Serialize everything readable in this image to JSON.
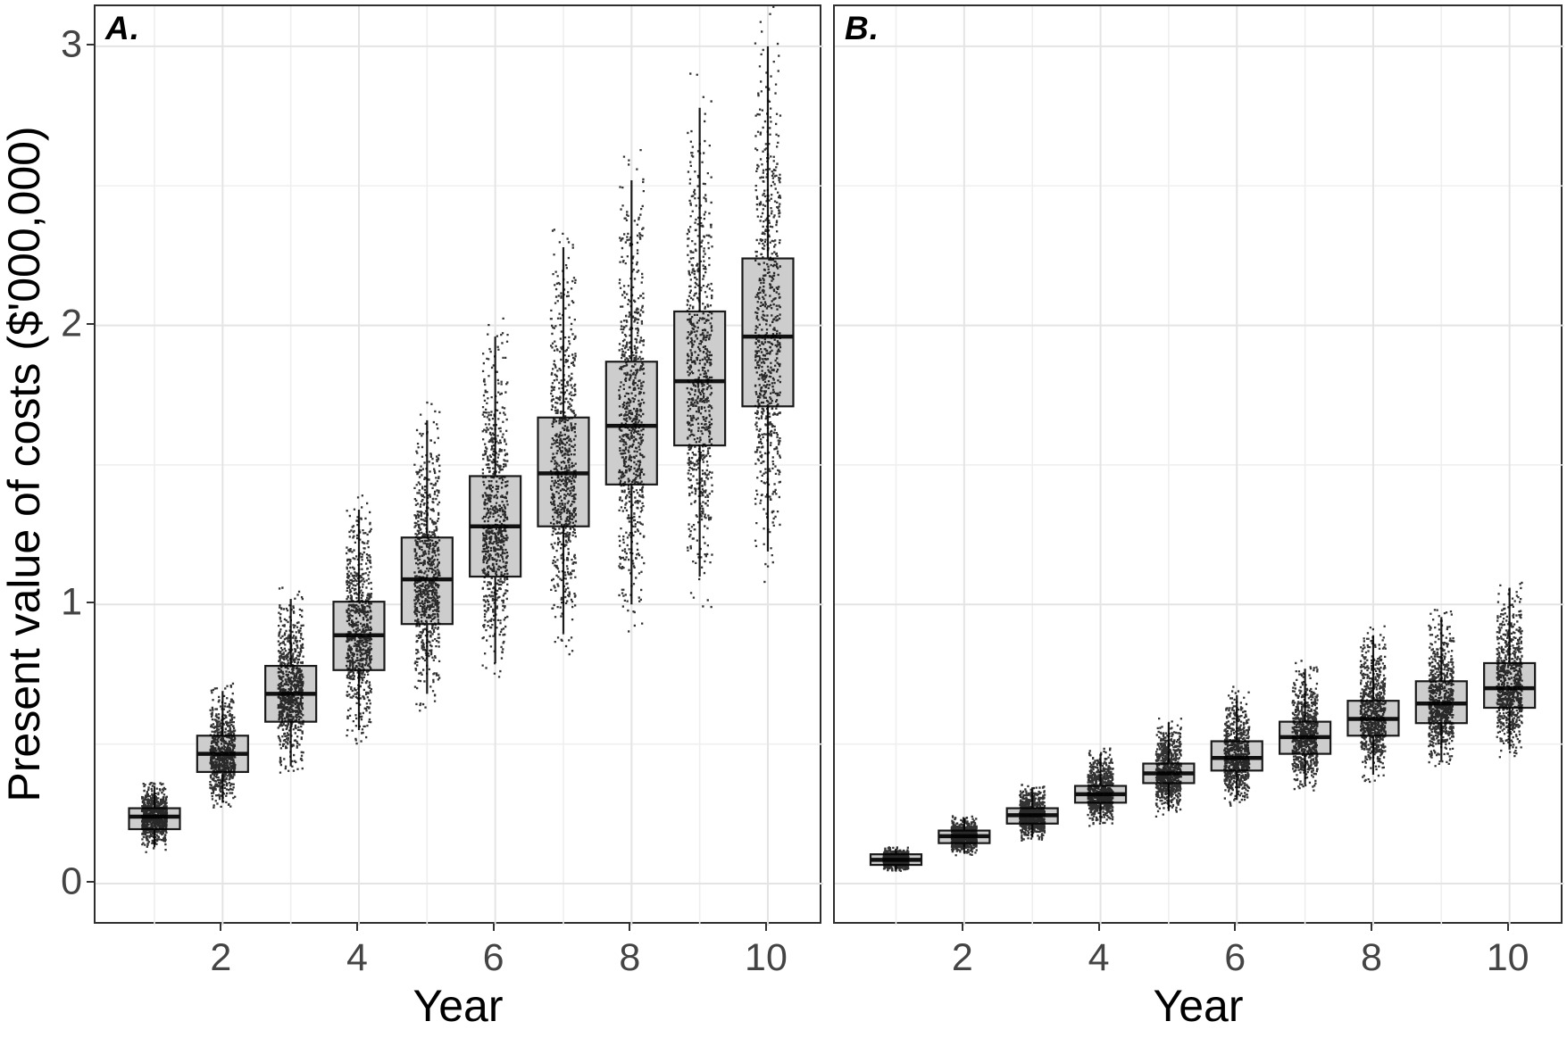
{
  "chart_data": {
    "type": "boxplot",
    "variant": "faceted boxplots with jittered simulation points",
    "title": "",
    "xlabel": "Year",
    "ylabel": "Present value of costs ($'000,000)",
    "x_ticks": [
      2,
      4,
      6,
      8,
      10
    ],
    "x_minor": [
      1,
      3,
      5,
      7,
      9
    ],
    "y_ticks": [
      0,
      1,
      2,
      3
    ],
    "y_minor": [
      0.5,
      1.5,
      2.5
    ],
    "xlim": [
      0.15,
      10.8
    ],
    "ylim": [
      -0.15,
      3.14
    ],
    "grid": "major+minor, light grey on white, full panel border (theme_bw)",
    "legend": "none",
    "facets": [
      {
        "label": "A.",
        "categories": [
          1,
          2,
          3,
          4,
          5,
          6,
          7,
          8,
          9,
          10
        ],
        "stats": [
          {
            "year": 1,
            "whisker_low": 0.13,
            "q1": 0.195,
            "median": 0.24,
            "q3": 0.27,
            "whisker_high": 0.35
          },
          {
            "year": 2,
            "whisker_low": 0.29,
            "q1": 0.4,
            "median": 0.465,
            "q3": 0.53,
            "whisker_high": 0.69
          },
          {
            "year": 3,
            "whisker_low": 0.42,
            "q1": 0.58,
            "median": 0.68,
            "q3": 0.78,
            "whisker_high": 1.02
          },
          {
            "year": 4,
            "whisker_low": 0.55,
            "q1": 0.765,
            "median": 0.89,
            "q3": 1.01,
            "whisker_high": 1.34
          },
          {
            "year": 5,
            "whisker_low": 0.68,
            "q1": 0.93,
            "median": 1.09,
            "q3": 1.24,
            "whisker_high": 1.66
          },
          {
            "year": 6,
            "whisker_low": 0.79,
            "q1": 1.1,
            "median": 1.28,
            "q3": 1.46,
            "whisker_high": 1.96
          },
          {
            "year": 7,
            "whisker_low": 0.9,
            "q1": 1.28,
            "median": 1.47,
            "q3": 1.67,
            "whisker_high": 2.28
          },
          {
            "year": 8,
            "whisker_low": 1.0,
            "q1": 1.43,
            "median": 1.64,
            "q3": 1.87,
            "whisker_high": 2.52
          },
          {
            "year": 9,
            "whisker_low": 1.1,
            "q1": 1.57,
            "median": 1.8,
            "q3": 2.05,
            "whisker_high": 2.78
          },
          {
            "year": 10,
            "whisker_low": 1.19,
            "q1": 1.71,
            "median": 1.96,
            "q3": 2.24,
            "whisker_high": 3.0
          }
        ]
      },
      {
        "label": "B.",
        "categories": [
          1,
          2,
          3,
          4,
          5,
          6,
          7,
          8,
          9,
          10
        ],
        "stats": [
          {
            "year": 1,
            "whisker_low": 0.05,
            "q1": 0.067,
            "median": 0.085,
            "q3": 0.105,
            "whisker_high": 0.125
          },
          {
            "year": 2,
            "whisker_low": 0.11,
            "q1": 0.145,
            "median": 0.17,
            "q3": 0.19,
            "whisker_high": 0.235
          },
          {
            "year": 3,
            "whisker_low": 0.165,
            "q1": 0.215,
            "median": 0.245,
            "q3": 0.27,
            "whisker_high": 0.345
          },
          {
            "year": 4,
            "whisker_low": 0.22,
            "q1": 0.29,
            "median": 0.32,
            "q3": 0.35,
            "whisker_high": 0.465
          },
          {
            "year": 5,
            "whisker_low": 0.26,
            "q1": 0.36,
            "median": 0.395,
            "q3": 0.43,
            "whisker_high": 0.575
          },
          {
            "year": 6,
            "whisker_low": 0.3,
            "q1": 0.405,
            "median": 0.45,
            "q3": 0.51,
            "whisker_high": 0.675
          },
          {
            "year": 7,
            "whisker_low": 0.355,
            "q1": 0.465,
            "median": 0.525,
            "q3": 0.58,
            "whisker_high": 0.77
          },
          {
            "year": 8,
            "whisker_low": 0.39,
            "q1": 0.53,
            "median": 0.59,
            "q3": 0.655,
            "whisker_high": 0.89
          },
          {
            "year": 9,
            "whisker_low": 0.44,
            "q1": 0.575,
            "median": 0.645,
            "q3": 0.725,
            "whisker_high": 0.955
          },
          {
            "year": 10,
            "whisker_low": 0.48,
            "q1": 0.63,
            "median": 0.7,
            "q3": 0.79,
            "whisker_high": 1.06
          }
        ]
      }
    ],
    "style": {
      "box_fill": "#cdcdcd",
      "box_stroke": "#1a1a1a",
      "median_stroke": "#111111",
      "point_color": "#000000",
      "grid_major": "#e4e4e4",
      "grid_minor": "#efefef",
      "panel_border": "#2e2e2e",
      "tick_label_color": "#444444",
      "axis_title_color": "#000000",
      "background": "#ffffff"
    }
  }
}
